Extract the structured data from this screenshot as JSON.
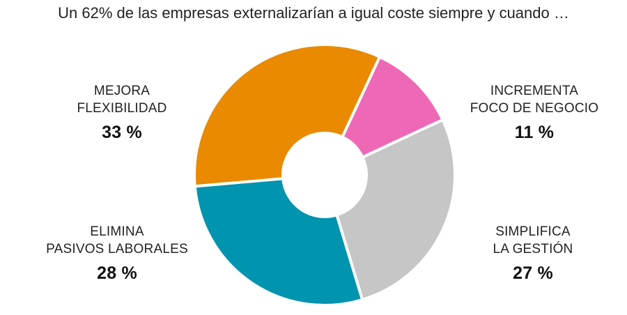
{
  "title": "Un 62% de las empresas externalizarían a igual coste siempre y cuando …",
  "chart_data": {
    "type": "pie",
    "style": "donut",
    "title": "Un 62% de las empresas externalizarían a igual coste siempre y cuando …",
    "slices": [
      {
        "label_lines": [
          "MEJORA",
          "FLEXIBILIDAD"
        ],
        "value": 33,
        "value_label": "33 %",
        "color": "#E98A00"
      },
      {
        "label_lines": [
          "INCREMENTA",
          "FOCO DE NEGOCIO"
        ],
        "value": 11,
        "value_label": "11 %",
        "color": "#EE69B5"
      },
      {
        "label_lines": [
          "SIMPLIFICA",
          "LA GESTIÓN"
        ],
        "value": 27,
        "value_label": "27 %",
        "color": "#C6C6C6"
      },
      {
        "label_lines": [
          "ELIMINA",
          "PASIVOS LABORALES"
        ],
        "value": 28,
        "value_label": "28 %",
        "color": "#0094AE"
      }
    ]
  }
}
